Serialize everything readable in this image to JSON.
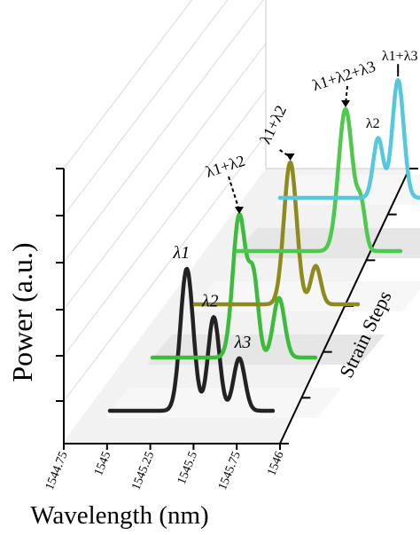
{
  "chart_data": {
    "type": "line",
    "style": "3d-waterfall",
    "ylabel": "Power (a.u.)",
    "xlabel": "Wavelength (nm)",
    "zlabel": "Strain Steps",
    "x_ticks": [
      "1544.75",
      "1545",
      "1545.25",
      "1545.5",
      "1545.75",
      "1546"
    ],
    "x_range": [
      1544.75,
      1546
    ],
    "series": [
      {
        "color": "#222222",
        "peaks": [
          {
            "x": 1545.33,
            "y": 1.0,
            "width": 0.045,
            "label": "λ1"
          },
          {
            "x": 1545.52,
            "y": 0.66,
            "width": 0.04,
            "label": "λ2"
          },
          {
            "x": 1545.7,
            "y": 0.37,
            "width": 0.04,
            "label": "λ3"
          }
        ]
      },
      {
        "color": "#3dbb3d",
        "peaks": [
          {
            "x": 1545.4,
            "y": 1.0,
            "width": 0.045,
            "label": "λ1+λ2"
          },
          {
            "x": 1545.5,
            "y": 0.55,
            "width": 0.035
          },
          {
            "x": 1545.68,
            "y": 0.42,
            "width": 0.04
          }
        ]
      },
      {
        "color": "#8f8a1e",
        "peaks": [
          {
            "x": 1545.46,
            "y": 1.0,
            "width": 0.045,
            "label": "λ1+λ2"
          },
          {
            "x": 1545.64,
            "y": 0.27,
            "width": 0.035
          }
        ]
      },
      {
        "color": "#4ec94e",
        "peaks": [
          {
            "x": 1545.55,
            "y": 1.0,
            "width": 0.05,
            "label": "λ1+λ2+λ3"
          },
          {
            "x": 1545.66,
            "y": 0.3,
            "width": 0.03
          }
        ]
      },
      {
        "color": "#56c8dc",
        "peaks": [
          {
            "x": 1545.48,
            "y": 0.42,
            "width": 0.035,
            "label": "λ2"
          },
          {
            "x": 1545.62,
            "y": 0.83,
            "width": 0.04,
            "label": "λ1+λ3"
          }
        ]
      }
    ],
    "grid": true
  }
}
